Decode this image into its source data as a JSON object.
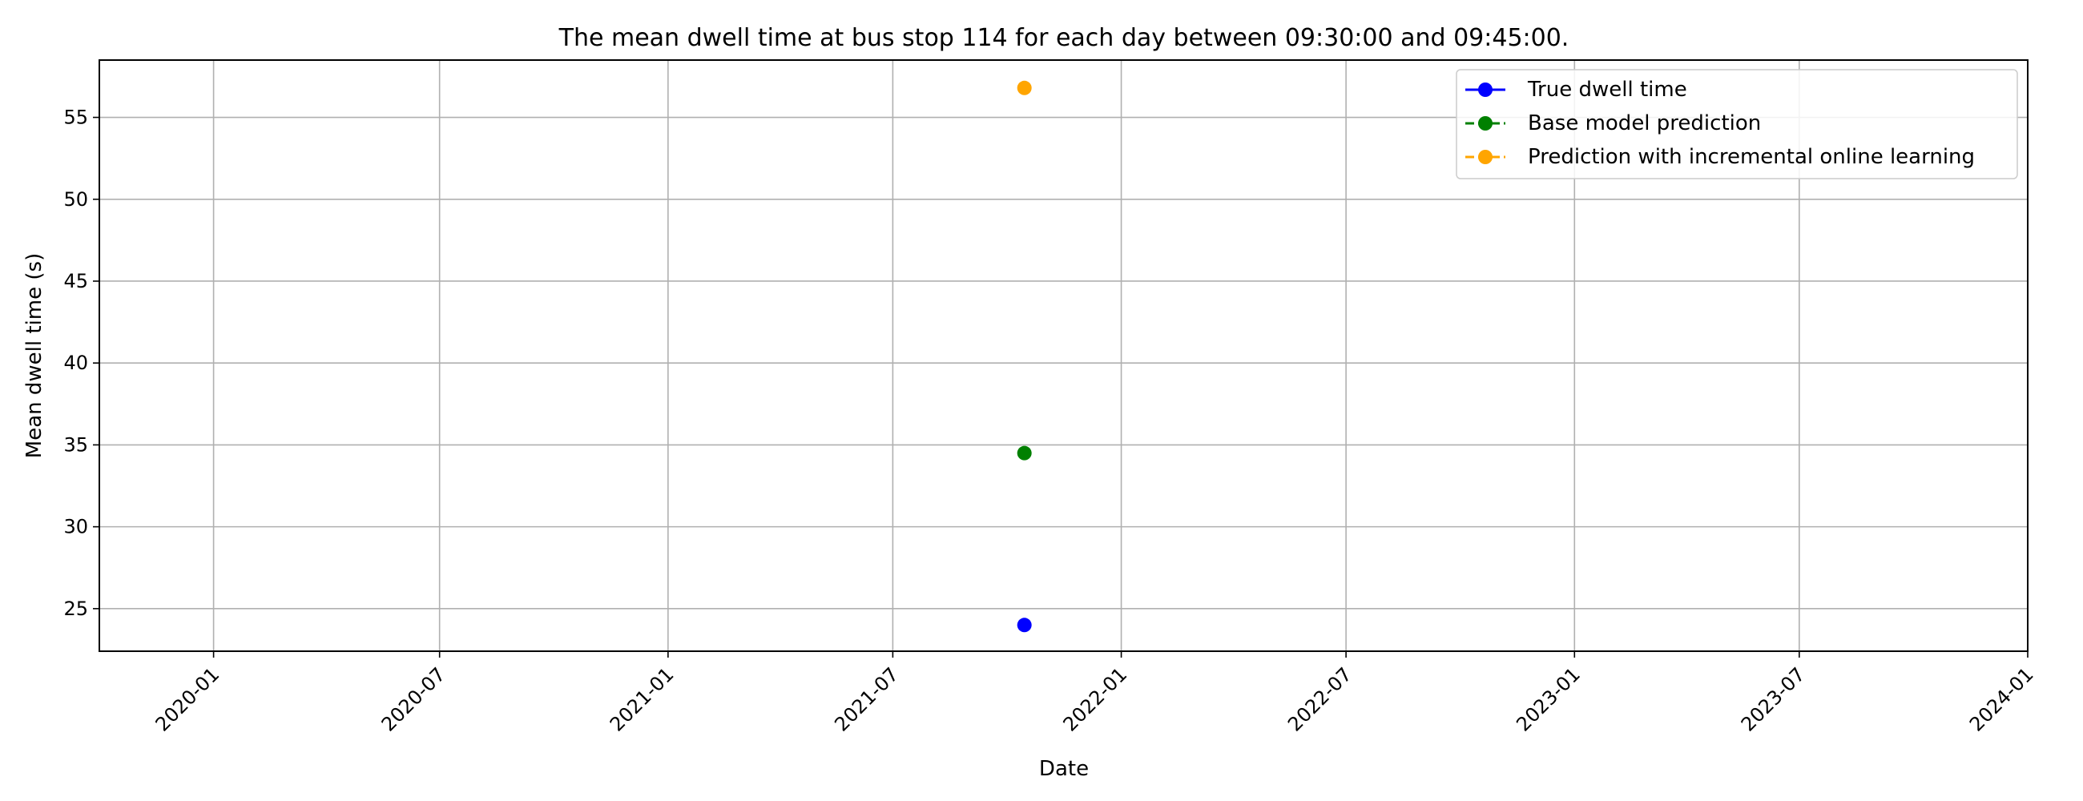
{
  "chart_data": {
    "type": "scatter",
    "title": "The mean dwell time at bus stop 114 for each day between 09:30:00 and 09:45:00.",
    "xlabel": "Date",
    "ylabel": "Mean dwell time (s)",
    "x_axis_type": "date",
    "xlim": [
      "2019-10-01",
      "2024-01-01"
    ],
    "ylim": [
      22.4,
      58.5
    ],
    "x_ticks": [
      "2020-01-01",
      "2020-07-01",
      "2021-01-01",
      "2021-07-01",
      "2022-01-01",
      "2022-07-01",
      "2023-01-01",
      "2023-07-01",
      "2024-01-01"
    ],
    "x_tick_labels": [
      "2020-01",
      "2020-07",
      "2021-01",
      "2021-07",
      "2022-01",
      "2022-07",
      "2023-01",
      "2023-07",
      "2024-01"
    ],
    "y_ticks": [
      25,
      30,
      35,
      40,
      45,
      50,
      55
    ],
    "y_tick_labels": [
      "25",
      "30",
      "35",
      "40",
      "45",
      "50",
      "55"
    ],
    "grid": true,
    "legend_position": "top-right",
    "series": [
      {
        "name": "True dwell time",
        "color": "#0000ff",
        "line_style": "solid",
        "points": [
          {
            "x": "2021-10-15",
            "y": 24.0
          }
        ]
      },
      {
        "name": "Base model prediction",
        "color": "#008000",
        "line_style": "dashed",
        "points": [
          {
            "x": "2021-10-15",
            "y": 34.5
          }
        ]
      },
      {
        "name": "Prediction with incremental online learning",
        "color": "#ffa500",
        "line_style": "dashed",
        "points": [
          {
            "x": "2021-10-15",
            "y": 56.8
          }
        ]
      }
    ]
  }
}
